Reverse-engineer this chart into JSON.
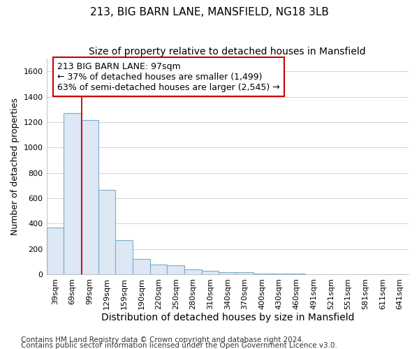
{
  "title1": "213, BIG BARN LANE, MANSFIELD, NG18 3LB",
  "title2": "Size of property relative to detached houses in Mansfield",
  "xlabel": "Distribution of detached houses by size in Mansfield",
  "ylabel": "Number of detached properties",
  "categories": [
    "39sqm",
    "69sqm",
    "99sqm",
    "129sqm",
    "159sqm",
    "190sqm",
    "220sqm",
    "250sqm",
    "280sqm",
    "310sqm",
    "340sqm",
    "370sqm",
    "400sqm",
    "430sqm",
    "460sqm",
    "491sqm",
    "521sqm",
    "551sqm",
    "581sqm",
    "611sqm",
    "641sqm"
  ],
  "values": [
    370,
    1270,
    1215,
    665,
    270,
    120,
    75,
    70,
    40,
    30,
    18,
    15,
    8,
    6,
    4,
    2,
    1,
    1,
    1,
    0,
    1
  ],
  "bar_color": "#dde8f4",
  "bar_edge_color": "#7aaccc",
  "highlight_line_color": "#cc0000",
  "annotation_text": "213 BIG BARN LANE: 97sqm\n← 37% of detached houses are smaller (1,499)\n63% of semi-detached houses are larger (2,545) →",
  "annotation_box_color": "white",
  "annotation_box_edge": "#cc0000",
  "ylim": [
    0,
    1700
  ],
  "yticks": [
    0,
    200,
    400,
    600,
    800,
    1000,
    1200,
    1400,
    1600
  ],
  "footer1": "Contains HM Land Registry data © Crown copyright and database right 2024.",
  "footer2": "Contains public sector information licensed under the Open Government Licence v3.0.",
  "bg_color": "#ffffff",
  "plot_bg_color": "#ffffff",
  "grid_color": "#cccccc",
  "title1_fontsize": 11,
  "title2_fontsize": 10,
  "xlabel_fontsize": 10,
  "ylabel_fontsize": 9,
  "tick_fontsize": 8,
  "annotation_fontsize": 9,
  "footer_fontsize": 7.5
}
